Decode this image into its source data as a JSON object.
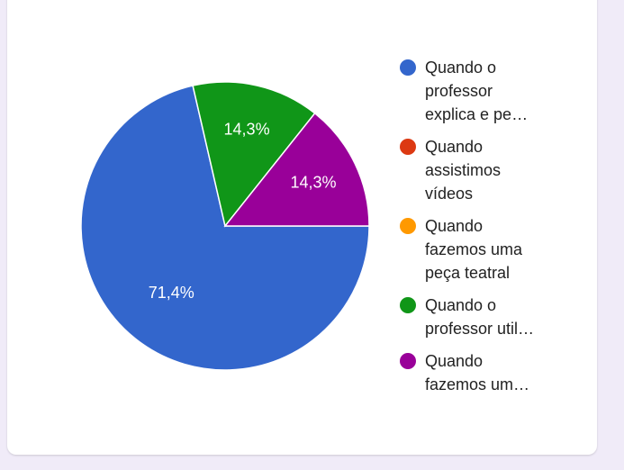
{
  "chart_data": {
    "type": "pie",
    "categories": [
      "Quando o professor explica e pe…",
      "Quando assistimos vídeos",
      "Quando fazemos uma peça teatral",
      "Quando o professor util…",
      "Quando fazemos um…"
    ],
    "values": [
      71.4,
      0,
      0,
      14.3,
      14.3
    ],
    "value_labels": [
      "71,4%",
      null,
      null,
      "14,3%",
      "14,3%"
    ],
    "colors": [
      "#3366cc",
      "#dc3912",
      "#ff9900",
      "#109618",
      "#990099"
    ],
    "legend": "right"
  }
}
